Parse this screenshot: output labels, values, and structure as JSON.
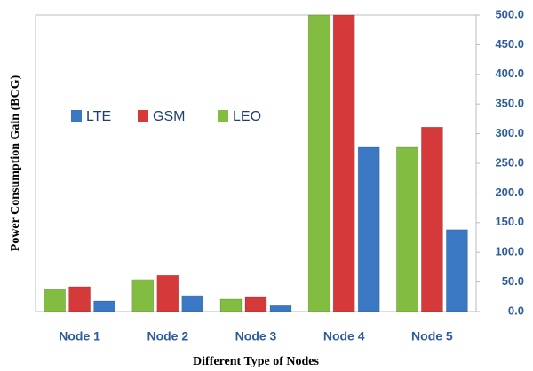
{
  "chart_data": {
    "type": "bar",
    "x_label": "Different Type of Nodes",
    "y_label": "Power Consumption Gain (BCG)",
    "categories": [
      "Node 1",
      "Node 2",
      "Node 3",
      "Node 4",
      "Node 5"
    ],
    "series": [
      {
        "name": "LTE",
        "color": "#3a78c4",
        "values": [
          18,
          27,
          10,
          277,
          138
        ]
      },
      {
        "name": "GSM",
        "color": "#d6393a",
        "values": [
          42,
          61,
          24,
          500,
          311
        ]
      },
      {
        "name": "LEO",
        "color": "#82bd41",
        "values": [
          37,
          54,
          21,
          500,
          277
        ]
      }
    ],
    "ylim": [
      0,
      500
    ],
    "yticks": [
      {
        "value": 0,
        "label": "0.0"
      },
      {
        "value": 50,
        "label": "50.0"
      },
      {
        "value": 100,
        "label": "100.0"
      },
      {
        "value": 150,
        "label": "150.0"
      },
      {
        "value": 200,
        "label": "200.0"
      },
      {
        "value": 250,
        "label": "250.0"
      },
      {
        "value": 300,
        "label": "300.0"
      },
      {
        "value": 350,
        "label": "350.0"
      },
      {
        "value": 400,
        "label": "400.0"
      },
      {
        "value": 450,
        "label": "450.0"
      },
      {
        "value": 500,
        "label": "500.0"
      }
    ],
    "y_axis_side": "right",
    "grid": false,
    "legend": "upper left"
  }
}
